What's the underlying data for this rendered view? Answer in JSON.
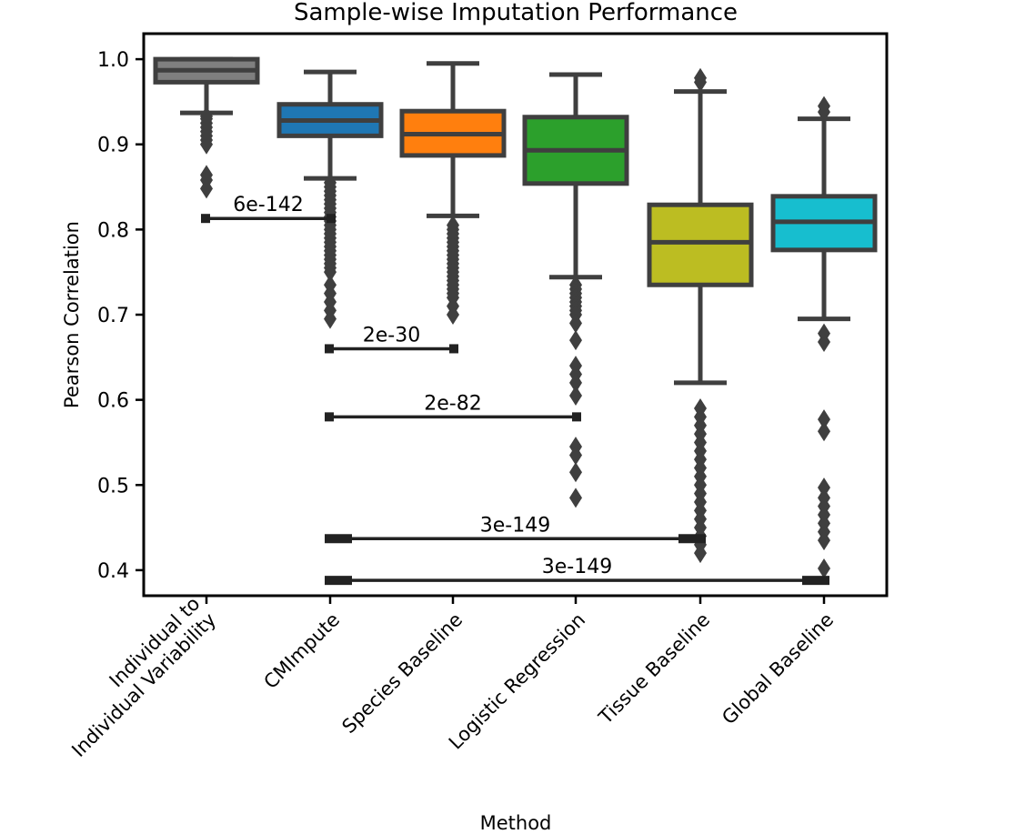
{
  "chart_data": {
    "type": "box",
    "title": "Sample-wise Imputation Performance",
    "xlabel": "Method",
    "ylabel": "Pearson Correlation",
    "ylim": [
      0.37,
      1.03
    ],
    "yticks": [
      0.4,
      0.5,
      0.6,
      0.7,
      0.8,
      0.9,
      1.0
    ],
    "ytick_labels": [
      "0.4",
      "0.5",
      "0.6",
      "0.7",
      "0.8",
      "0.9",
      "1.0"
    ],
    "categories": [
      "Individual to Individual Variability",
      "CMImpute",
      "Species Baseline",
      "Logistic Regression",
      "Tissue Baseline",
      "Global Baseline"
    ],
    "category_lines": [
      [
        "Individual to",
        "Individual Variability"
      ],
      [
        "CMImpute"
      ],
      [
        "Species Baseline"
      ],
      [
        "Logistic Regression"
      ],
      [
        "Tissue Baseline"
      ],
      [
        "Global Baseline"
      ]
    ],
    "boxes": [
      {
        "name": "Individual to Individual Variability",
        "color": "#7f7f7f",
        "whisker_low": 0.937,
        "q1": 0.973,
        "median": 0.987,
        "q3": 1.0,
        "whisker_high": 1.0,
        "outliers": [
          0.933,
          0.93,
          0.925,
          0.92,
          0.915,
          0.91,
          0.905,
          0.9,
          0.864,
          0.858,
          0.848
        ]
      },
      {
        "name": "CMImpute",
        "color": "#1f77b4",
        "whisker_low": 0.86,
        "q1": 0.91,
        "median": 0.928,
        "q3": 0.947,
        "whisker_high": 0.985,
        "outliers": [
          0.855,
          0.85,
          0.845,
          0.84,
          0.835,
          0.83,
          0.825,
          0.82,
          0.815,
          0.81,
          0.805,
          0.8,
          0.795,
          0.79,
          0.785,
          0.78,
          0.775,
          0.77,
          0.765,
          0.76,
          0.755,
          0.75,
          0.735,
          0.725,
          0.715,
          0.705,
          0.695
        ]
      },
      {
        "name": "Species Baseline",
        "color": "#ff7f0e",
        "whisker_low": 0.816,
        "q1": 0.887,
        "median": 0.912,
        "q3": 0.939,
        "whisker_high": 0.995,
        "outliers": [
          0.805,
          0.8,
          0.795,
          0.79,
          0.785,
          0.78,
          0.775,
          0.77,
          0.765,
          0.76,
          0.755,
          0.75,
          0.745,
          0.74,
          0.735,
          0.73,
          0.725,
          0.72,
          0.71,
          0.7
        ]
      },
      {
        "name": "Logistic Regression",
        "color": "#2ca02c",
        "whisker_low": 0.744,
        "q1": 0.854,
        "median": 0.893,
        "q3": 0.932,
        "whisker_high": 0.982,
        "outliers": [
          0.735,
          0.73,
          0.725,
          0.72,
          0.715,
          0.71,
          0.705,
          0.7,
          0.69,
          0.67,
          0.64,
          0.63,
          0.62,
          0.605,
          0.545,
          0.535,
          0.515,
          0.485
        ]
      },
      {
        "name": "Tissue Baseline",
        "color": "#bcbd22",
        "whisker_low": 0.62,
        "q1": 0.735,
        "median": 0.785,
        "q3": 0.829,
        "whisker_high": 0.962,
        "outliers": [
          0.978,
          0.973,
          0.59,
          0.58,
          0.57,
          0.56,
          0.55,
          0.54,
          0.53,
          0.52,
          0.51,
          0.5,
          0.49,
          0.48,
          0.47,
          0.46,
          0.45,
          0.44,
          0.43,
          0.42
        ]
      },
      {
        "name": "Global Baseline",
        "color": "#17becf",
        "whisker_low": 0.695,
        "q1": 0.776,
        "median": 0.809,
        "q3": 0.839,
        "whisker_high": 0.93,
        "outliers": [
          0.945,
          0.938,
          0.678,
          0.668,
          0.577,
          0.563,
          0.497,
          0.485,
          0.475,
          0.465,
          0.455,
          0.445,
          0.435,
          0.402
        ]
      }
    ],
    "annotations": [
      {
        "text": "6e-142",
        "from": 0,
        "to": 1,
        "y": 0.813
      },
      {
        "text": "2e-30",
        "from": 1,
        "to": 2,
        "y": 0.66
      },
      {
        "text": "2e-82",
        "from": 1,
        "to": 3,
        "y": 0.58
      },
      {
        "text": "3e-149",
        "from": 1,
        "to": 4,
        "y": 0.437
      },
      {
        "text": "3e-149",
        "from": 1,
        "to": 5,
        "y": 0.388
      }
    ]
  }
}
